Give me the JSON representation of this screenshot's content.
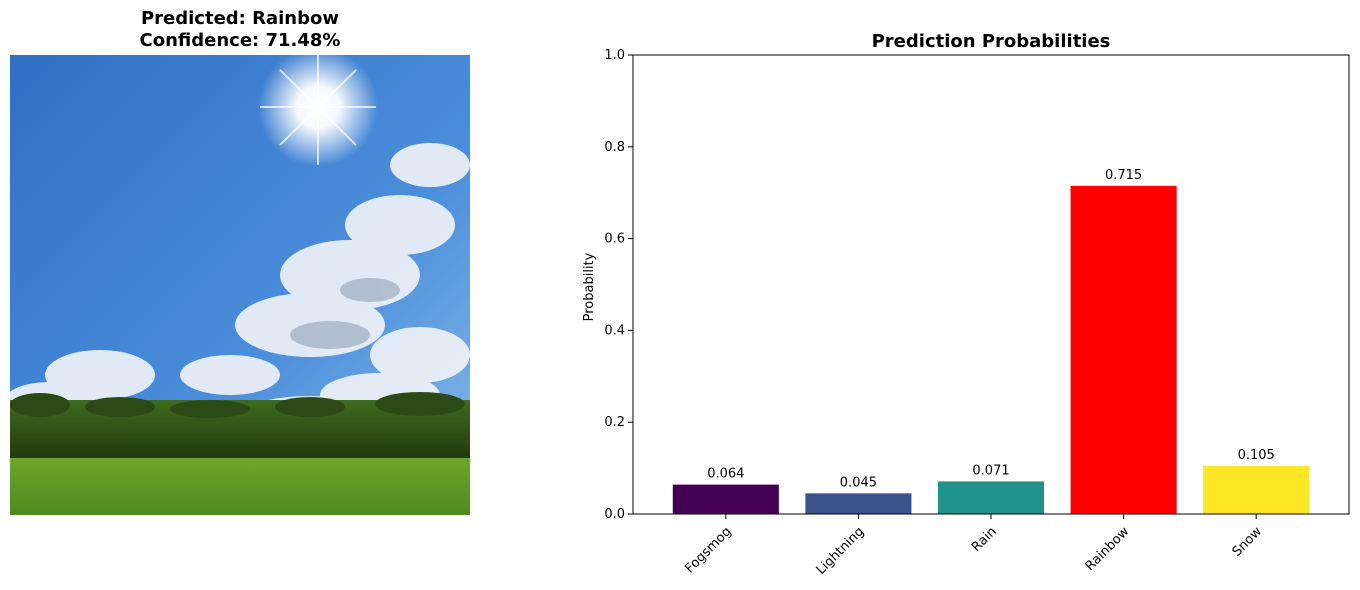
{
  "left_panel": {
    "title_line1": "Predicted: Rainbow",
    "title_line2": "Confidence: 71.48%",
    "photo_description_icon": "sky-photo"
  },
  "chart_data": {
    "type": "bar",
    "title": "Prediction Probabilities",
    "xlabel": "",
    "ylabel": "Probability",
    "categories": [
      "Fogsmog",
      "Lightning",
      "Rain",
      "Rainbow",
      "Snow"
    ],
    "values": [
      0.064,
      0.045,
      0.071,
      0.715,
      0.105
    ],
    "value_labels": [
      "0.064",
      "0.045",
      "0.071",
      "0.715",
      "0.105"
    ],
    "colors": [
      "#440154",
      "#3b528b",
      "#21918c",
      "#ff0000",
      "#fde725"
    ],
    "ylim": [
      0,
      1.0
    ],
    "yticks": [
      "0.0",
      "0.2",
      "0.4",
      "0.6",
      "0.8",
      "1.0"
    ],
    "ytick_values": [
      0,
      0.2,
      0.4,
      0.6,
      0.8,
      1.0
    ],
    "grid": false
  }
}
